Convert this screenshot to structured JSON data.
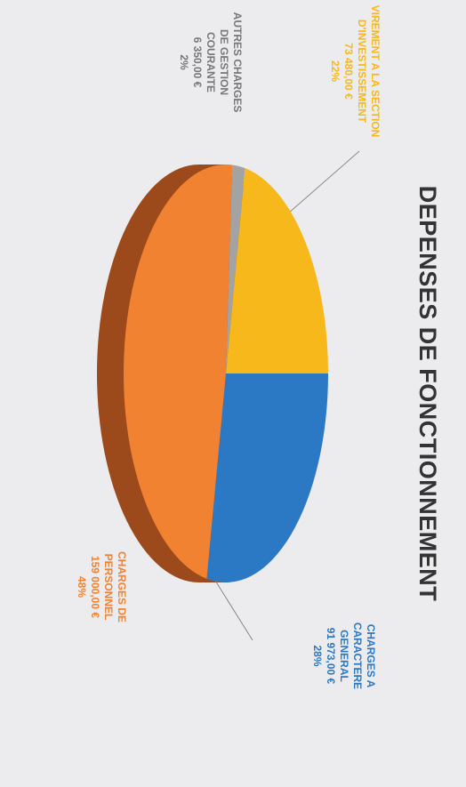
{
  "chart_data": {
    "type": "pie",
    "title": "DEPENSES DE FONCTIONNEMENT",
    "categories": [
      "CHARGES A CARACTERE GENERAL",
      "CHARGES DE PERSONNEL",
      "AUTRES CHARGES DE GESTION COURANTE",
      "VIREMENT A LA SECTION D'INVESTISSEMENT"
    ],
    "values": [
      28,
      48,
      2,
      22
    ],
    "value_labels": [
      "28%",
      "48%",
      "2%",
      "22%"
    ],
    "amounts": [
      {
        "value": 91973,
        "label": "91 973,00 €"
      },
      {
        "value": 159000,
        "label": "159 000,00 €"
      },
      {
        "value": 6350,
        "label": "6 350,00 €"
      },
      {
        "value": 73480,
        "label": "73 480,00 €"
      }
    ],
    "colors": [
      "#2b79c5",
      "#f08232",
      "#a3a3a3",
      "#f6b81a"
    ]
  }
}
